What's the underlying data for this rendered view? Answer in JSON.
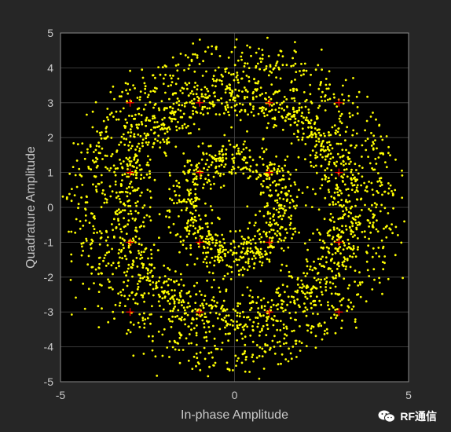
{
  "chart_data": {
    "type": "scatter",
    "title": "",
    "xlabel": "In-phase Amplitude",
    "ylabel": "Quadrature Amplitude",
    "xlim": [
      -5,
      5
    ],
    "ylim": [
      -5,
      5
    ],
    "xticks": [
      -5,
      0,
      5
    ],
    "yticks": [
      -5,
      -4,
      -3,
      -2,
      -1,
      0,
      1,
      2,
      3,
      4,
      5
    ],
    "grid": true,
    "background": "#000000",
    "figure_background": "#262626",
    "series": [
      {
        "marker": "dot",
        "color": "#ffff00",
        "distribution": "noisy rings",
        "rings": [
          {
            "radius": 1.414,
            "spread": 0.3,
            "count": 700
          },
          {
            "radius": 3.162,
            "spread": 0.35,
            "count": 1500
          },
          {
            "radius": 4.243,
            "spread": 0.38,
            "count": 900
          }
        ]
      },
      {
        "marker": "plus",
        "color": "#ff0000",
        "distribution": "reference constellation",
        "points": [
          [
            -3,
            3
          ],
          [
            -1,
            3
          ],
          [
            1,
            3
          ],
          [
            3,
            3
          ],
          [
            -3,
            1
          ],
          [
            -1,
            1
          ],
          [
            1,
            1
          ],
          [
            3,
            1
          ],
          [
            -3,
            -1
          ],
          [
            -1,
            -1
          ],
          [
            1,
            -1
          ],
          [
            3,
            -1
          ],
          [
            -3,
            -3
          ],
          [
            -1,
            -3
          ],
          [
            1,
            -3
          ],
          [
            3,
            -3
          ]
        ]
      }
    ]
  },
  "watermark": {
    "text": "RF通信",
    "icon": "wechat-icon"
  }
}
